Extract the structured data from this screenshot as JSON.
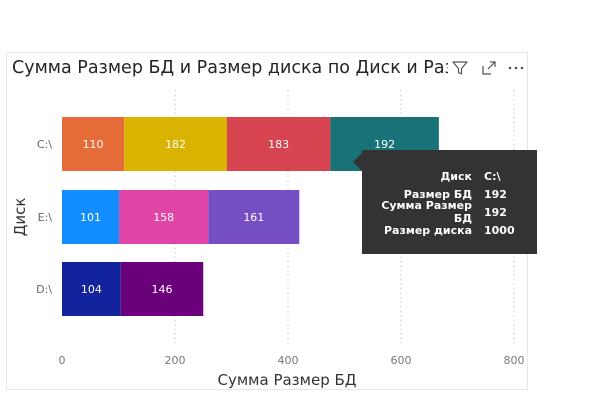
{
  "header": {
    "title": "Сумма Размер БД и Размер диска по Диск и Размер БД",
    "icons": [
      "filter-icon",
      "focus-mode-icon",
      "more-options-icon"
    ]
  },
  "chart_data": {
    "type": "bar",
    "orientation": "horizontal",
    "stacked": true,
    "title": "Сумма Размер БД и Размер диска по Диск и Размер БД",
    "xlabel": "Сумма Размер БД",
    "ylabel": "Диск",
    "xlim": [
      0,
      800
    ],
    "x_ticks": [
      0,
      200,
      400,
      600,
      800
    ],
    "grid": true,
    "categories": [
      "C:\\",
      "E:\\",
      "D:\\"
    ],
    "rows": [
      {
        "category": "C:\\",
        "segments": [
          {
            "value": 110,
            "color": "#e66c37"
          },
          {
            "value": 182,
            "color": "#d9b300"
          },
          {
            "value": 183,
            "color": "#d64550"
          },
          {
            "value": 192,
            "color": "#197278"
          }
        ]
      },
      {
        "category": "E:\\",
        "segments": [
          {
            "value": 101,
            "color": "#118dff"
          },
          {
            "value": 158,
            "color": "#e044a7"
          },
          {
            "value": 161,
            "color": "#744ec2"
          }
        ]
      },
      {
        "category": "D:\\",
        "segments": [
          {
            "value": 104,
            "color": "#12239e"
          },
          {
            "value": 146,
            "color": "#6b007b"
          }
        ]
      }
    ]
  },
  "tooltip": {
    "rows": [
      {
        "key": "Диск",
        "value": "C:\\"
      },
      {
        "key": "Размер БД",
        "value": "192"
      },
      {
        "key": "Сумма Размер БД",
        "value": "192"
      },
      {
        "key": "Размер диска",
        "value": "1000"
      }
    ]
  },
  "colors": {
    "tooltip_bg": "#333333",
    "grid": "#c8c8c8"
  }
}
